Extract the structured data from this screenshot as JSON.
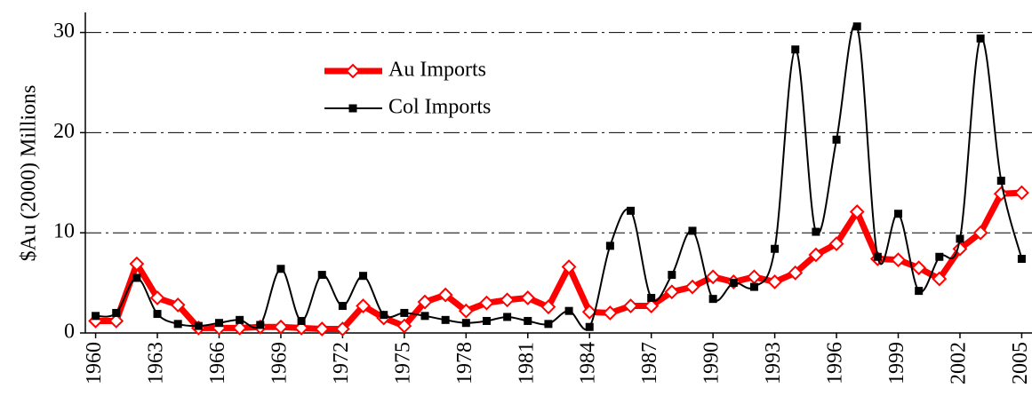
{
  "chart_data": {
    "type": "line",
    "ylabel": "$Au (2000) Millions",
    "x": [
      1960,
      1961,
      1962,
      1963,
      1964,
      1965,
      1966,
      1967,
      1968,
      1969,
      1970,
      1971,
      1972,
      1973,
      1974,
      1975,
      1976,
      1977,
      1978,
      1979,
      1980,
      1981,
      1982,
      1983,
      1984,
      1985,
      1986,
      1987,
      1988,
      1989,
      1990,
      1991,
      1992,
      1993,
      1994,
      1995,
      1996,
      1997,
      1998,
      1999,
      2000,
      2001,
      2002,
      2003,
      2004,
      2005
    ],
    "series": [
      {
        "name": "Au Imports",
        "color": "#ff0000",
        "marker": "diamond",
        "smooth": false,
        "values": [
          1.2,
          1.2,
          6.9,
          3.5,
          2.8,
          0.5,
          0.5,
          0.5,
          0.6,
          0.6,
          0.5,
          0.4,
          0.4,
          2.7,
          1.5,
          0.7,
          3.1,
          3.8,
          2.2,
          3.0,
          3.3,
          3.5,
          2.6,
          6.6,
          2.1,
          2.0,
          2.7,
          2.7,
          4.1,
          4.6,
          5.6,
          5.1,
          5.6,
          5.1,
          6.0,
          7.8,
          8.9,
          12.1,
          7.4,
          7.3,
          6.5,
          5.4,
          8.4,
          10.0,
          13.9,
          14.0
        ]
      },
      {
        "name": "Col Imports",
        "color": "#000000",
        "marker": "square",
        "smooth": true,
        "values": [
          1.7,
          2.0,
          5.5,
          1.9,
          0.9,
          0.7,
          1.0,
          1.3,
          0.8,
          6.4,
          1.2,
          5.8,
          2.7,
          5.7,
          1.8,
          2.0,
          1.7,
          1.3,
          1.0,
          1.2,
          1.6,
          1.2,
          0.9,
          2.2,
          0.6,
          8.7,
          12.2,
          3.5,
          5.8,
          10.2,
          3.4,
          5.0,
          4.6,
          8.4,
          28.3,
          10.1,
          19.3,
          30.6,
          7.6,
          11.9,
          4.2,
          7.6,
          9.4,
          29.4,
          15.2,
          7.4
        ]
      }
    ],
    "xlim": [
      1959.5,
      2005.5
    ],
    "xticks": [
      1960,
      1963,
      1966,
      1969,
      1972,
      1975,
      1978,
      1981,
      1984,
      1987,
      1990,
      1993,
      1996,
      1999,
      2002,
      2005
    ],
    "ylim": [
      0,
      32
    ],
    "yticks": [
      0,
      10,
      20,
      30
    ],
    "grid": true
  }
}
